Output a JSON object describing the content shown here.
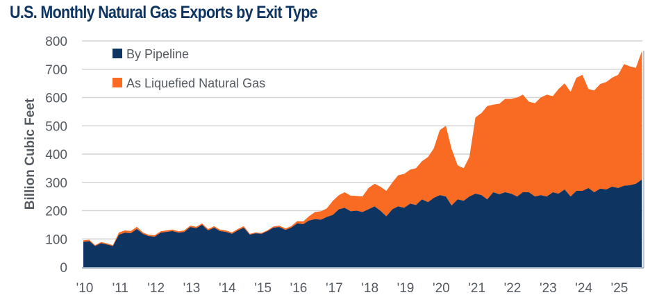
{
  "title": "U.S. Monthly Natural Gas Exports by Exit Type",
  "chart_data": {
    "type": "area",
    "stacked": true,
    "title": "U.S. Monthly Natural Gas Exports by Exit Type",
    "xlabel": "",
    "ylabel": "Billion Cubic Feet",
    "ylim": [
      0,
      800
    ],
    "yticks": [
      0,
      100,
      200,
      300,
      400,
      500,
      600,
      700,
      800
    ],
    "xlim": [
      2010.0,
      2025.75
    ],
    "xticks": [
      2010,
      2011,
      2012,
      2013,
      2014,
      2015,
      2016,
      2017,
      2018,
      2019,
      2020,
      2021,
      2022,
      2023,
      2024,
      2025
    ],
    "xtick_labels": [
      "'10",
      "'11",
      "'12",
      "'13",
      "'14",
      "'15",
      "'16",
      "'17",
      "'18",
      "'19",
      "'20",
      "'21",
      "'22",
      "'23",
      "'24",
      "'25"
    ],
    "grid": true,
    "legend_position": "top-left",
    "colors": {
      "pipeline": "#0e3461",
      "lng": "#f96a22"
    },
    "x": [
      2010.0,
      2010.17,
      2010.33,
      2010.5,
      2010.67,
      2010.83,
      2011.0,
      2011.17,
      2011.33,
      2011.5,
      2011.67,
      2011.83,
      2012.0,
      2012.17,
      2012.33,
      2012.5,
      2012.67,
      2012.83,
      2013.0,
      2013.17,
      2013.33,
      2013.5,
      2013.67,
      2013.83,
      2014.0,
      2014.17,
      2014.33,
      2014.5,
      2014.67,
      2014.83,
      2015.0,
      2015.17,
      2015.33,
      2015.5,
      2015.67,
      2015.83,
      2016.0,
      2016.17,
      2016.33,
      2016.5,
      2016.67,
      2016.83,
      2017.0,
      2017.17,
      2017.33,
      2017.5,
      2017.67,
      2017.83,
      2018.0,
      2018.17,
      2018.33,
      2018.5,
      2018.67,
      2018.83,
      2019.0,
      2019.17,
      2019.33,
      2019.5,
      2019.67,
      2019.83,
      2020.0,
      2020.17,
      2020.33,
      2020.5,
      2020.67,
      2020.83,
      2021.0,
      2021.17,
      2021.33,
      2021.5,
      2021.67,
      2021.83,
      2022.0,
      2022.17,
      2022.33,
      2022.5,
      2022.67,
      2022.83,
      2023.0,
      2023.17,
      2023.33,
      2023.5,
      2023.67,
      2023.83,
      2024.0,
      2024.17,
      2024.33,
      2024.5,
      2024.67,
      2024.83,
      2025.0,
      2025.17,
      2025.33,
      2025.5,
      2025.67
    ],
    "series": [
      {
        "name": "By Pipeline",
        "values": [
          90,
          92,
          75,
          85,
          80,
          75,
          115,
          122,
          120,
          135,
          118,
          110,
          108,
          122,
          125,
          128,
          122,
          125,
          142,
          138,
          150,
          130,
          140,
          128,
          125,
          118,
          130,
          140,
          115,
          120,
          118,
          128,
          140,
          142,
          132,
          140,
          155,
          152,
          165,
          170,
          168,
          178,
          185,
          205,
          210,
          198,
          200,
          195,
          205,
          215,
          200,
          180,
          205,
          215,
          210,
          225,
          220,
          240,
          230,
          245,
          255,
          250,
          218,
          240,
          235,
          250,
          260,
          255,
          240,
          265,
          258,
          265,
          260,
          250,
          265,
          265,
          250,
          255,
          250,
          265,
          260,
          275,
          250,
          270,
          270,
          280,
          265,
          278,
          275,
          285,
          280,
          288,
          290,
          295,
          310
        ]
      },
      {
        "name": "As Liquefied Natural Gas",
        "values": [
          5,
          5,
          3,
          4,
          4,
          3,
          8,
          8,
          8,
          8,
          5,
          5,
          5,
          5,
          5,
          5,
          5,
          5,
          5,
          5,
          5,
          5,
          5,
          5,
          5,
          5,
          5,
          5,
          3,
          3,
          3,
          3,
          4,
          5,
          5,
          5,
          8,
          10,
          15,
          25,
          30,
          30,
          50,
          50,
          55,
          55,
          52,
          55,
          75,
          80,
          85,
          90,
          95,
          110,
          120,
          120,
          130,
          135,
          160,
          175,
          230,
          250,
          200,
          120,
          115,
          140,
          270,
          290,
          330,
          310,
          320,
          330,
          335,
          350,
          345,
          320,
          330,
          345,
          360,
          340,
          370,
          375,
          370,
          400,
          410,
          350,
          360,
          370,
          380,
          385,
          400,
          430,
          420,
          410,
          455
        ]
      }
    ]
  },
  "legend": [
    {
      "label": "By Pipeline",
      "color": "#0e3461"
    },
    {
      "label": "As Liquefied Natural Gas",
      "color": "#f96a22"
    }
  ]
}
